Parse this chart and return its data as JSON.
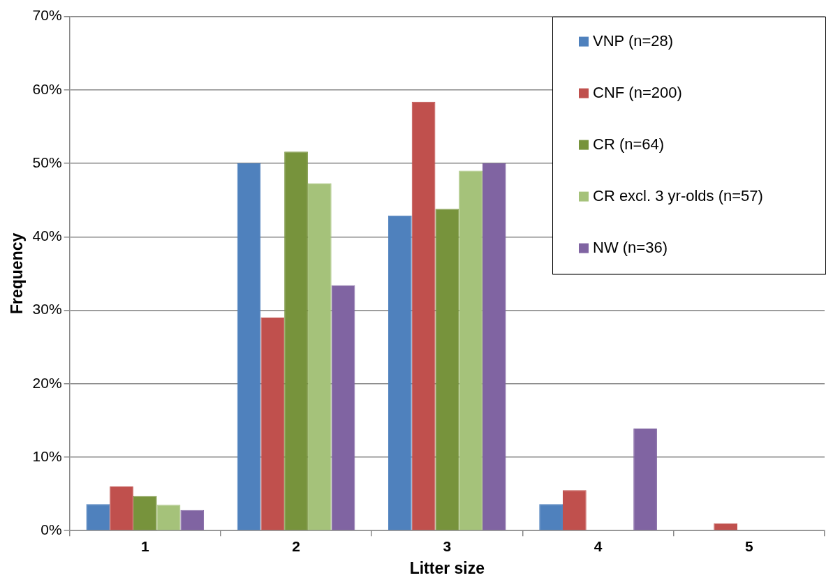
{
  "chart_data": {
    "type": "bar",
    "xlabel": "Litter size",
    "ylabel": "Frequency",
    "categories": [
      "1",
      "2",
      "3",
      "4",
      "5"
    ],
    "series": [
      {
        "name": "VNP (n=28)",
        "color": "#4f81bd",
        "values": [
          3.6,
          50,
          42.9,
          3.6,
          0
        ]
      },
      {
        "name": "CNF (n=200)",
        "color": "#c0504d",
        "values": [
          6.0,
          29.0,
          58.4,
          5.5,
          1.0
        ]
      },
      {
        "name": "CR (n=64)",
        "color": "#77933c",
        "values": [
          4.7,
          51.6,
          43.8,
          0,
          0
        ]
      },
      {
        "name": "CR excl. 3 yr-olds (n=57)",
        "color": "#a5c27a",
        "values": [
          3.5,
          47.3,
          49.0,
          0,
          0
        ]
      },
      {
        "name": "NW (n=36)",
        "color": "#8064a2",
        "values": [
          2.8,
          33.4,
          50,
          13.9,
          0
        ]
      }
    ],
    "ylim": [
      0,
      70
    ],
    "yticks": [
      {
        "value": 0,
        "label": "0%"
      },
      {
        "value": 10,
        "label": "10%"
      },
      {
        "value": 20,
        "label": "20%"
      },
      {
        "value": 30,
        "label": "30%"
      },
      {
        "value": 40,
        "label": "40%"
      },
      {
        "value": 50,
        "label": "50%"
      },
      {
        "value": 60,
        "label": "60%"
      },
      {
        "value": 70,
        "label": "70%"
      }
    ],
    "grid": "y",
    "legend": "top right"
  }
}
